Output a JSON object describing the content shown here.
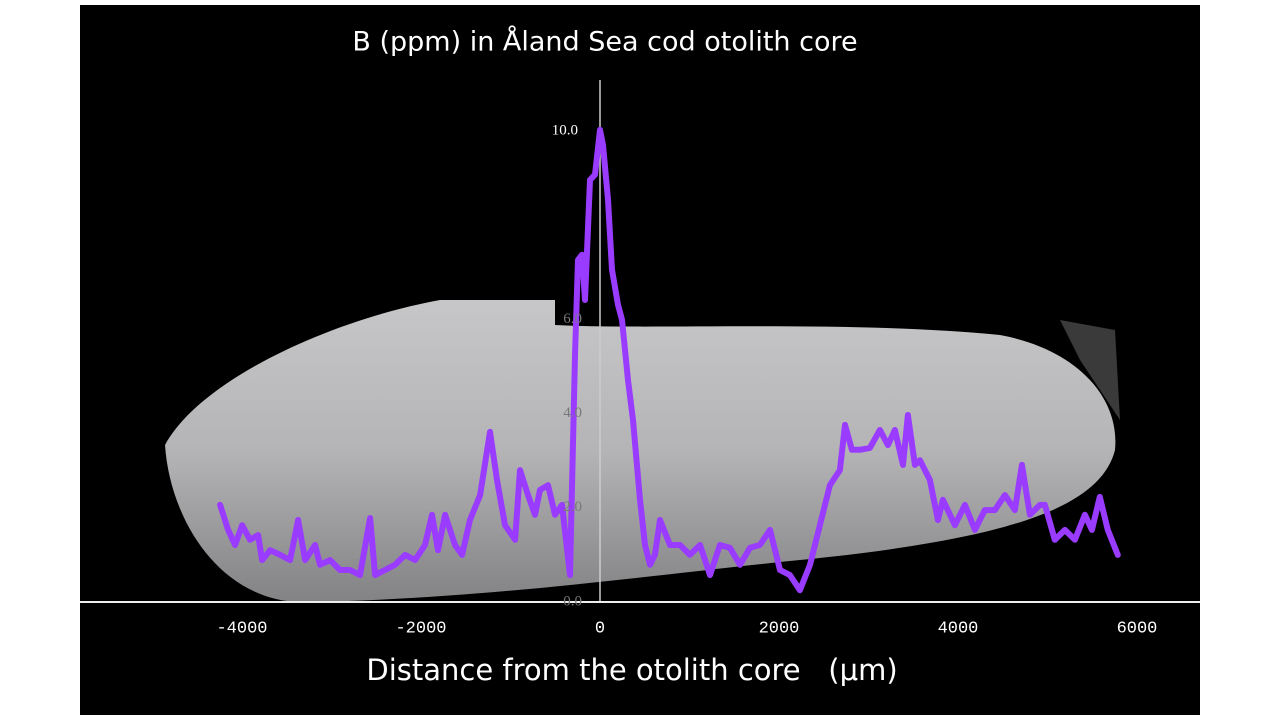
{
  "chart_data": {
    "type": "line",
    "title": "B (ppm) in Åland Sea cod otolith core",
    "x_label": "Distance from the otolith core   (μm)",
    "xlim": [
      -5810,
      6704
    ],
    "xticks": [
      -4000,
      -2000,
      0,
      2000,
      4000,
      6000
    ],
    "ylim": [
      0,
      11.08
    ],
    "yticks": [
      {
        "value": 0,
        "label": "0.0"
      },
      {
        "value": 2,
        "label": "2.0"
      },
      {
        "value": 4,
        "label": "4.0"
      },
      {
        "value": 6,
        "label": "6.0"
      },
      {
        "value": 10,
        "label": "10.0"
      }
    ],
    "grid": false,
    "series": [
      {
        "name": "B (ppm)",
        "color": "#9a3cff",
        "x": [
          -4245,
          -4155,
          -4077,
          -3999,
          -3910,
          -3820,
          -3775,
          -3686,
          -3574,
          -3463,
          -3373,
          -3295,
          -3183,
          -3128,
          -3016,
          -2904,
          -2793,
          -2681,
          -2569,
          -2513,
          -2402,
          -2290,
          -2178,
          -2066,
          -1955,
          -1877,
          -1810,
          -1731,
          -1620,
          -1541,
          -1452,
          -1340,
          -1229,
          -1151,
          -1061,
          -949,
          -894,
          -804,
          -726,
          -670,
          -581,
          -503,
          -424,
          -335,
          -279,
          -246,
          -201,
          -168,
          -112,
          -56,
          0,
          34,
          89,
          134,
          201,
          246,
          313,
          369,
          447,
          503,
          559,
          614,
          670,
          782,
          894,
          1005,
          1117,
          1229,
          1340,
          1452,
          1564,
          1676,
          1787,
          1899,
          2011,
          2122,
          2234,
          2346,
          2457,
          2569,
          2681,
          2737,
          2815,
          2904,
          3016,
          3128,
          3217,
          3295,
          3385,
          3440,
          3519,
          3574,
          3686,
          3775,
          3831,
          3965,
          4077,
          4189,
          4300,
          4412,
          4524,
          4636,
          4714,
          4803,
          4915,
          4971,
          5082,
          5194,
          5306,
          5418,
          5496,
          5585,
          5674,
          5786
        ],
        "values": [
          2.06,
          1.53,
          1.21,
          1.63,
          1.32,
          1.42,
          0.89,
          1.1,
          1.0,
          0.89,
          1.74,
          0.89,
          1.21,
          0.79,
          0.89,
          0.68,
          0.68,
          0.57,
          1.78,
          0.57,
          0.68,
          0.79,
          1.0,
          0.89,
          1.21,
          1.85,
          1.1,
          1.85,
          1.21,
          1.0,
          1.74,
          2.27,
          3.61,
          2.59,
          1.63,
          1.32,
          2.8,
          2.27,
          1.85,
          2.38,
          2.48,
          1.85,
          2.06,
          0.57,
          5.24,
          7.26,
          7.37,
          6.41,
          8.96,
          9.07,
          10.02,
          9.7,
          8.54,
          7.05,
          6.31,
          5.99,
          4.71,
          3.86,
          2.17,
          1.21,
          0.79,
          1.0,
          1.74,
          1.21,
          1.21,
          1.0,
          1.21,
          0.57,
          1.21,
          1.15,
          0.79,
          1.15,
          1.21,
          1.53,
          0.68,
          0.57,
          0.25,
          0.79,
          1.63,
          2.48,
          2.8,
          3.76,
          3.23,
          3.23,
          3.27,
          3.65,
          3.33,
          3.65,
          2.91,
          3.97,
          2.91,
          3.01,
          2.59,
          1.74,
          2.17,
          1.63,
          2.06,
          1.53,
          1.95,
          1.95,
          2.27,
          1.95,
          2.91,
          1.85,
          2.06,
          2.06,
          1.32,
          1.53,
          1.32,
          1.85,
          1.53,
          2.23,
          1.53,
          1.0
        ]
      }
    ]
  }
}
